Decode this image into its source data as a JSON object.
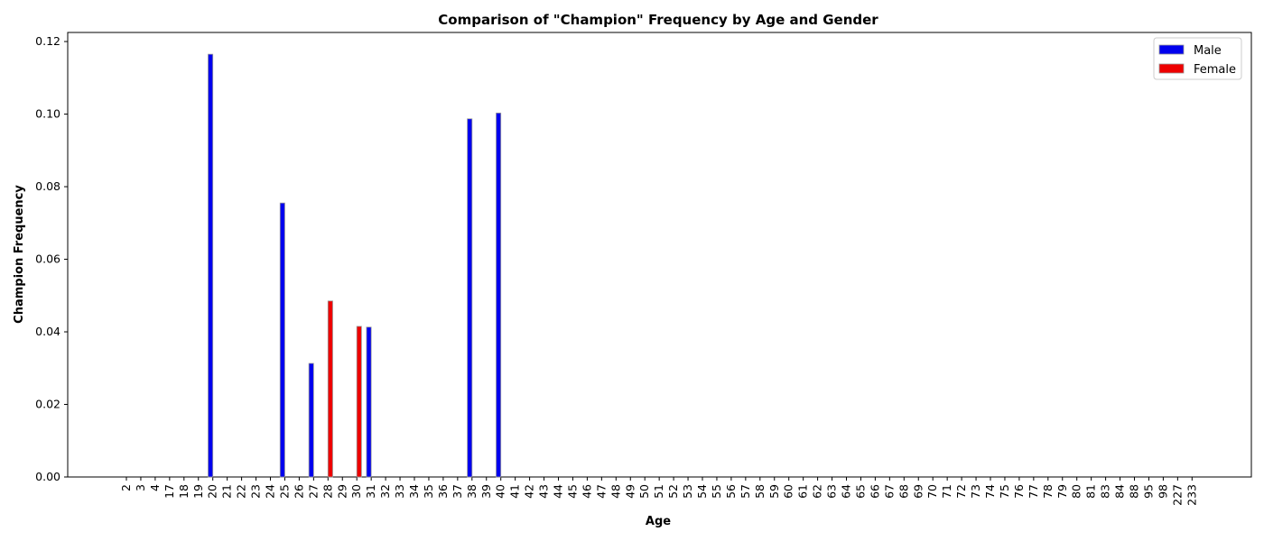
{
  "chart_data": {
    "type": "bar",
    "title": "Comparison of \"Champion\" Frequency by Age and Gender",
    "xlabel": "Age",
    "ylabel": "Champion Frequency",
    "ylim": [
      0,
      0.1225
    ],
    "yticks": [
      "0.00",
      "0.02",
      "0.04",
      "0.06",
      "0.08",
      "0.10",
      "0.12"
    ],
    "grid": false,
    "legend_position": "top-right",
    "categories": [
      "2",
      "3",
      "4",
      "17",
      "18",
      "19",
      "20",
      "21",
      "22",
      "23",
      "24",
      "25",
      "26",
      "27",
      "28",
      "29",
      "30",
      "31",
      "32",
      "33",
      "34",
      "35",
      "36",
      "37",
      "38",
      "39",
      "40",
      "41",
      "42",
      "43",
      "44",
      "45",
      "46",
      "47",
      "48",
      "49",
      "50",
      "51",
      "52",
      "53",
      "54",
      "55",
      "56",
      "57",
      "58",
      "59",
      "60",
      "61",
      "62",
      "63",
      "64",
      "65",
      "66",
      "67",
      "68",
      "69",
      "70",
      "71",
      "72",
      "73",
      "74",
      "75",
      "76",
      "77",
      "78",
      "79",
      "80",
      "81",
      "83",
      "84",
      "88",
      "95",
      "98",
      "227",
      "233"
    ],
    "series": [
      {
        "name": "Male",
        "color": "#0000ee",
        "values": [
          0,
          0,
          0,
          0,
          0,
          0,
          0.1165,
          0,
          0,
          0,
          0,
          0.0755,
          0,
          0.0313,
          0,
          0,
          0,
          0.0413,
          0,
          0,
          0,
          0,
          0,
          0,
          0.0987,
          0,
          0.1003,
          0,
          0,
          0,
          0,
          0,
          0,
          0,
          0,
          0,
          0,
          0,
          0,
          0,
          0,
          0,
          0,
          0,
          0,
          0,
          0,
          0,
          0,
          0,
          0,
          0,
          0,
          0,
          0,
          0,
          0,
          0,
          0,
          0,
          0,
          0,
          0,
          0,
          0,
          0,
          0,
          0,
          0,
          0,
          0,
          0,
          0,
          0,
          0
        ]
      },
      {
        "name": "Female",
        "color": "#ee0000",
        "values": [
          0,
          0,
          0,
          0,
          0,
          0,
          0,
          0,
          0,
          0,
          0,
          0,
          0,
          0,
          0.0485,
          0,
          0.0415,
          0,
          0,
          0,
          0,
          0,
          0,
          0,
          0,
          0,
          0,
          0,
          0,
          0,
          0,
          0,
          0,
          0,
          0,
          0,
          0,
          0,
          0,
          0,
          0,
          0,
          0,
          0,
          0,
          0,
          0,
          0,
          0,
          0,
          0,
          0,
          0,
          0,
          0,
          0,
          0,
          0,
          0,
          0,
          0,
          0,
          0,
          0,
          0,
          0,
          0,
          0,
          0,
          0,
          0,
          0,
          0,
          0,
          0
        ]
      }
    ]
  }
}
